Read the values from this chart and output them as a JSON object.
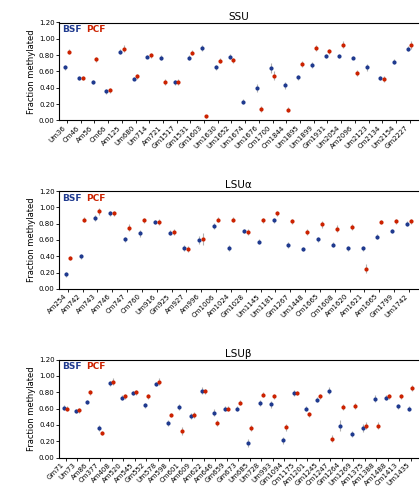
{
  "ssu": {
    "title": "SSU",
    "labels": [
      "Um36",
      "Cm46",
      "Am56",
      "Cm66",
      "Am125",
      "Um680",
      "Um714",
      "Am721",
      "Gm1517",
      "Gm1531",
      "Gm1603",
      "Um1630",
      "Um1652",
      "Um1674",
      "Um1676",
      "Cm1700",
      "Cm1844",
      "Um1895",
      "Um1899",
      "Gm1931",
      "Um2054",
      "Am2096",
      "Um2123",
      "Cm2134",
      "Um2154",
      "Gm2227"
    ],
    "bsf_y": [
      0.65,
      0.52,
      0.47,
      0.36,
      0.84,
      0.51,
      0.78,
      0.77,
      0.47,
      0.77,
      0.89,
      0.65,
      0.78,
      0.23,
      0.4,
      0.64,
      0.43,
      0.53,
      0.68,
      0.79,
      0.79,
      0.77,
      0.65,
      0.52,
      0.72,
      0.88
    ],
    "bsf_err": [
      0.03,
      0.02,
      0.02,
      0.03,
      0.03,
      0.02,
      0.02,
      0.03,
      0.03,
      0.03,
      0.04,
      0.03,
      0.03,
      0.03,
      0.05,
      0.06,
      0.04,
      0.03,
      0.04,
      0.03,
      0.03,
      0.02,
      0.04,
      0.03,
      0.03,
      0.03
    ],
    "pcf_y": [
      0.84,
      0.52,
      0.75,
      0.37,
      0.88,
      0.54,
      0.8,
      0.47,
      0.47,
      0.83,
      0.05,
      0.73,
      0.74,
      null,
      0.14,
      0.55,
      0.13,
      0.69,
      0.89,
      0.85,
      0.93,
      0.58,
      null,
      0.51,
      null,
      0.92
    ],
    "pcf_err": [
      0.03,
      0.03,
      0.03,
      0.03,
      0.04,
      0.03,
      0.03,
      0.04,
      0.04,
      0.03,
      0.02,
      0.03,
      0.03,
      null,
      0.04,
      0.05,
      0.03,
      0.04,
      0.04,
      0.03,
      0.04,
      0.04,
      null,
      0.04,
      null,
      0.05
    ]
  },
  "lsua": {
    "title": "LSUα",
    "labels": [
      "Am254",
      "Am742",
      "Am743",
      "Am746",
      "Cm747",
      "Cm760",
      "Um916",
      "Gm925",
      "Am927",
      "Am996",
      "Cm1006",
      "Am1024",
      "Gm1028",
      "Um1145",
      "Um1181",
      "Gm1267",
      "Um1448",
      "Cm1665",
      "Cm1608",
      "Am1620",
      "Am1621",
      "Am1665",
      "Gm1799",
      "Um1742"
    ],
    "bsf_y": [
      0.18,
      0.4,
      0.87,
      0.93,
      0.61,
      0.68,
      0.82,
      0.69,
      0.5,
      0.6,
      0.77,
      0.5,
      0.71,
      0.58,
      0.84,
      0.54,
      0.49,
      0.61,
      0.54,
      0.5,
      0.5,
      0.64,
      0.71,
      0.8
    ],
    "bsf_err": [
      0.03,
      0.03,
      0.04,
      0.03,
      0.03,
      0.04,
      0.03,
      0.03,
      0.04,
      0.05,
      0.04,
      0.04,
      0.03,
      0.03,
      0.03,
      0.04,
      0.03,
      0.03,
      0.03,
      0.03,
      0.03,
      0.03,
      0.03,
      0.03
    ],
    "pcf_y": [
      0.38,
      0.85,
      0.95,
      0.93,
      0.75,
      0.84,
      0.82,
      0.7,
      0.49,
      0.61,
      0.85,
      0.85,
      0.7,
      0.84,
      0.93,
      0.83,
      0.7,
      0.79,
      0.74,
      0.76,
      0.25,
      0.82,
      0.83,
      0.83
    ],
    "pcf_err": [
      0.03,
      0.03,
      0.04,
      0.03,
      0.04,
      0.03,
      0.04,
      0.04,
      0.04,
      0.07,
      0.03,
      0.03,
      0.04,
      0.03,
      0.03,
      0.03,
      0.04,
      0.04,
      0.04,
      0.04,
      0.05,
      0.03,
      0.03,
      0.03
    ]
  },
  "lsub": {
    "title": "LSUβ",
    "labels": [
      "Gm71",
      "Um73",
      "Am86",
      "Cm377",
      "Am408",
      "Am520",
      "Am545",
      "Gm552",
      "Um578",
      "Am598",
      "Cm601",
      "Am609",
      "Am622",
      "Am646",
      "Gm659",
      "Gm673",
      "Um685",
      "Um728",
      "Um993",
      "Gm1094",
      "Cm1175",
      "Am1201",
      "Gm1245",
      "Cm1247",
      "Gm1264",
      "Um1269",
      "Am1375",
      "Am1388",
      "Am1488",
      "Cm1413",
      "Um1435"
    ],
    "bsf_y": [
      0.61,
      0.57,
      0.68,
      0.36,
      0.91,
      0.73,
      0.79,
      0.64,
      0.9,
      0.42,
      0.62,
      0.51,
      0.82,
      0.55,
      0.6,
      0.6,
      0.18,
      0.67,
      0.65,
      0.21,
      0.79,
      0.6,
      0.71,
      0.82,
      0.39,
      0.29,
      0.36,
      0.72,
      0.73,
      0.63,
      0.6
    ],
    "bsf_err": [
      0.03,
      0.03,
      0.03,
      0.04,
      0.03,
      0.03,
      0.03,
      0.03,
      0.03,
      0.04,
      0.04,
      0.04,
      0.04,
      0.04,
      0.03,
      0.03,
      0.05,
      0.04,
      0.04,
      0.04,
      0.04,
      0.03,
      0.03,
      0.04,
      0.07,
      0.04,
      0.05,
      0.04,
      0.03,
      0.03,
      0.03
    ],
    "pcf_y": [
      0.6,
      0.58,
      0.8,
      0.3,
      0.93,
      0.75,
      0.8,
      0.75,
      0.93,
      0.52,
      0.32,
      0.52,
      0.81,
      0.42,
      0.6,
      0.67,
      0.36,
      0.77,
      0.75,
      0.37,
      0.79,
      0.53,
      0.75,
      0.23,
      0.62,
      0.63,
      0.39,
      0.39,
      0.75,
      0.75,
      0.85
    ],
    "pcf_err": [
      0.03,
      0.03,
      0.03,
      0.03,
      0.04,
      0.03,
      0.03,
      0.03,
      0.04,
      0.03,
      0.05,
      0.04,
      0.03,
      0.04,
      0.03,
      0.03,
      0.04,
      0.03,
      0.03,
      0.04,
      0.03,
      0.03,
      0.03,
      0.04,
      0.04,
      0.04,
      0.04,
      0.04,
      0.03,
      0.03,
      0.04
    ]
  },
  "bsf_color": "#1f3a8f",
  "pcf_color": "#cc2200",
  "err_color": "#b0b0b0",
  "ylim": [
    0.0,
    1.2
  ],
  "yticks": [
    0.0,
    0.2,
    0.4,
    0.6,
    0.8,
    1.0,
    1.2
  ],
  "ylabel": "Fraction methylated",
  "tick_fontsize": 5.0,
  "label_fontsize": 6.0,
  "title_fontsize": 7.5,
  "legend_fontsize": 6.5,
  "dot_size": 9
}
